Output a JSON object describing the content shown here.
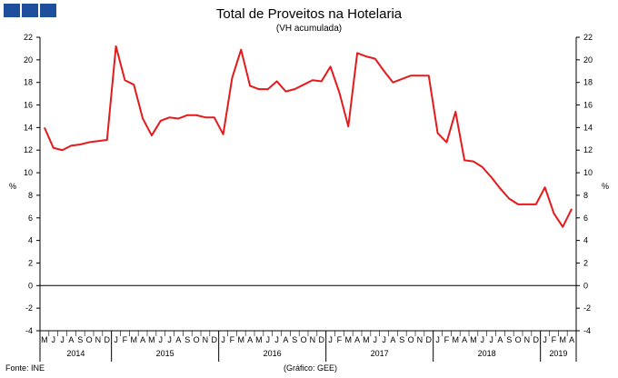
{
  "logo": {
    "color": "#1f4e9c",
    "squares": 3
  },
  "footer": {
    "source": "Fonte: INE",
    "graphic_credit": "(Gráfico: GEE)"
  },
  "chart_data": {
    "type": "line",
    "title": "Total de Proveitos na Hotelaria",
    "subtitle": "(VH acumulada)",
    "ylabel_left": "%",
    "ylabel_right": "%",
    "ylim": [
      -4,
      22
    ],
    "yticks": [
      -4,
      -2,
      0,
      2,
      4,
      6,
      8,
      10,
      12,
      14,
      16,
      18,
      20,
      22
    ],
    "grid": false,
    "legend": "none",
    "line_color": "#e41a1c",
    "month_labels": [
      "M",
      "J",
      "J",
      "A",
      "S",
      "O",
      "N",
      "D",
      "J",
      "F",
      "M",
      "A",
      "M",
      "J",
      "J",
      "A",
      "S",
      "O",
      "N",
      "D",
      "J",
      "F",
      "M",
      "A",
      "M",
      "J",
      "J",
      "A",
      "S",
      "O",
      "N",
      "D",
      "J",
      "F",
      "M",
      "A",
      "M",
      "J",
      "J",
      "A",
      "S",
      "O",
      "N",
      "D",
      "J",
      "F",
      "M",
      "A",
      "M",
      "J",
      "J",
      "A",
      "S",
      "O",
      "N",
      "D",
      "J",
      "F",
      "M",
      "A"
    ],
    "years": [
      {
        "label": "2014",
        "start": 0,
        "count": 8
      },
      {
        "label": "2015",
        "start": 8,
        "count": 12
      },
      {
        "label": "2016",
        "start": 20,
        "count": 12
      },
      {
        "label": "2017",
        "start": 32,
        "count": 12
      },
      {
        "label": "2018",
        "start": 44,
        "count": 12
      },
      {
        "label": "2019",
        "start": 56,
        "count": 4
      }
    ],
    "series": [
      {
        "values": [
          14.0,
          12.2,
          12.0,
          12.4,
          12.5,
          12.7,
          12.8,
          12.9,
          21.2,
          18.2,
          17.8,
          14.8,
          13.3,
          14.6,
          14.9,
          14.8,
          15.1,
          15.1,
          14.9,
          14.9,
          13.4,
          18.4,
          20.9,
          17.7,
          17.4,
          17.4,
          18.1,
          17.2,
          17.4,
          17.8,
          18.2,
          18.1,
          19.4,
          17.1,
          14.1,
          20.6,
          20.3,
          20.1,
          19.0,
          18.0,
          18.3,
          18.6,
          18.6,
          18.6,
          13.5,
          12.7,
          15.4,
          11.1,
          11.0,
          10.5,
          9.6,
          8.6,
          7.7,
          7.2,
          7.2,
          7.2,
          8.7,
          6.4,
          5.2,
          6.8
        ]
      }
    ]
  }
}
